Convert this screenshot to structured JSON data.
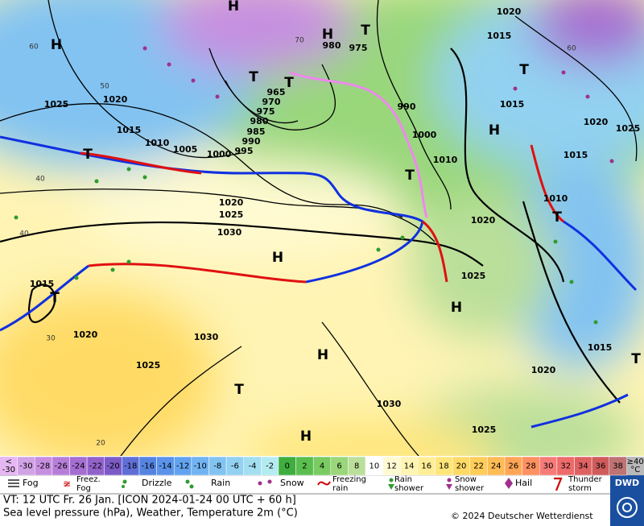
{
  "map": {
    "isobar_labels": [
      "1025",
      "1020",
      "1015",
      "1010",
      "1005",
      "1000",
      "995",
      "990",
      "985",
      "980",
      "975",
      "970",
      "965",
      "980",
      "975",
      "990",
      "1000",
      "1010",
      "1020",
      "1025",
      "1030",
      "1015",
      "1020",
      "1030",
      "1025",
      "1015",
      "1020",
      "1015",
      "1020",
      "1025",
      "1015",
      "1010",
      "1020",
      "1025",
      "1030",
      "1025",
      "1020",
      "1015"
    ],
    "grid_labels": [
      "60",
      "50",
      "40",
      "40",
      "30",
      "20",
      "60",
      "70"
    ],
    "pressure_centers": [
      "H",
      "H",
      "H",
      "T",
      "T",
      "T",
      "T",
      "H",
      "T",
      "T",
      "H",
      "T",
      "H",
      "H",
      "T",
      "H",
      "T",
      "T"
    ]
  },
  "temperature_scale": {
    "low_label": [
      "<",
      "-30"
    ],
    "high_label": [
      "≥40",
      "°C"
    ],
    "values": [
      -30,
      -28,
      -26,
      -24,
      -22,
      -20,
      -18,
      -16,
      -14,
      -12,
      -10,
      -8,
      -6,
      -4,
      -2,
      0,
      2,
      4,
      6,
      8,
      10,
      12,
      14,
      16,
      18,
      20,
      22,
      24,
      26,
      28,
      30,
      32,
      34,
      36,
      38
    ],
    "colors": [
      "#d2a2e6",
      "#c68fe0",
      "#b77ed9",
      "#a46ed2",
      "#9262cb",
      "#7c5bc6",
      "#5f6fd6",
      "#5583e0",
      "#5a93e9",
      "#62a3ef",
      "#72b3f2",
      "#82c3f2",
      "#92d1f1",
      "#a3def0",
      "#b4ebf0",
      "#3fae3f",
      "#5abe4f",
      "#79cb62",
      "#99d77a",
      "#badf9a",
      "#ffffff",
      "#fffad2",
      "#fff4b4",
      "#ffee96",
      "#ffe67a",
      "#ffdb66",
      "#ffcd58",
      "#ffbb54",
      "#ffa656",
      "#ff9060",
      "#f77b78",
      "#ee6b6b",
      "#df6262",
      "#cf5b5b",
      "#bf7373"
    ],
    "low_color": "#e6b8f2",
    "high_color": "#b9b9b9"
  },
  "weather_legend": [
    "Fog",
    [
      "Freez.",
      "Fog"
    ],
    "Drizzle",
    "Rain",
    "Snow",
    [
      "Freezing",
      "rain"
    ],
    [
      "Rain",
      "shower"
    ],
    [
      "Snow",
      "shower"
    ],
    "Hail",
    [
      "Thunder",
      "storm"
    ]
  ],
  "footer": {
    "valid_time": "VT: 12 UTC Fr.  26 Jan. [ICON 2024-01-24  00 UTC + 60 h]",
    "description": "Sea level pressure (hPa), Weather, Temperature 2m (°C)",
    "copyright": "© 2024 Deutscher Wetterdienst",
    "logo": "DWD"
  }
}
